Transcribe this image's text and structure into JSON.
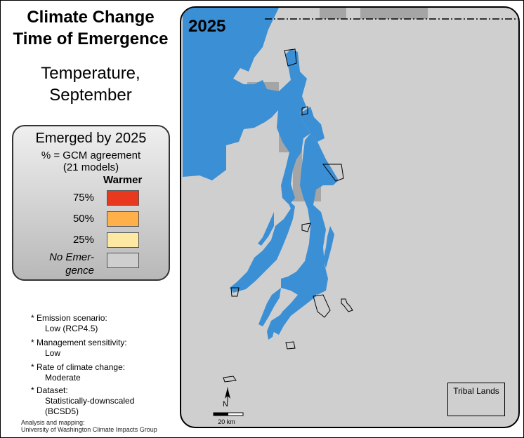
{
  "title_lines": [
    "Climate Change",
    "Time of Emergence"
  ],
  "subtitle_lines": [
    "Temperature,",
    "September"
  ],
  "map": {
    "year_label": "2025",
    "water_color": "#3b8fd4",
    "land_color": "#cfcfcf",
    "emerged_color": "#a5a5a5"
  },
  "legend": {
    "title": "Emerged by 2025",
    "subtitle_lines": [
      "% = GCM agreement",
      "(21 models)"
    ],
    "column_header": "Warmer",
    "items": [
      {
        "label": "75%",
        "color": "#e8391f"
      },
      {
        "label": "50%",
        "color": "#ffb04a"
      },
      {
        "label": "25%",
        "color": "#fee9a4"
      },
      {
        "label_lines": [
          "No Emer-",
          "gence"
        ],
        "color": "#cfcfcf"
      }
    ]
  },
  "notes": [
    {
      "label": "* Emission scenario:",
      "value": "Low (RCP4.5)"
    },
    {
      "label": "* Management sensitivity:",
      "value": "Low"
    },
    {
      "label": "* Rate of climate change:",
      "value": "Moderate"
    },
    {
      "label": "* Dataset:",
      "value_lines": [
        "Statistically-downscaled",
        "(BCSD5)"
      ]
    }
  ],
  "credit_lines": [
    "Analysis and mapping:",
    "University of Washington Climate Impacts Group"
  ],
  "scale_bar": {
    "label": "20 km"
  },
  "north_arrow": {
    "label": "N"
  },
  "tribal_lands": {
    "label": "Tribal Lands"
  }
}
